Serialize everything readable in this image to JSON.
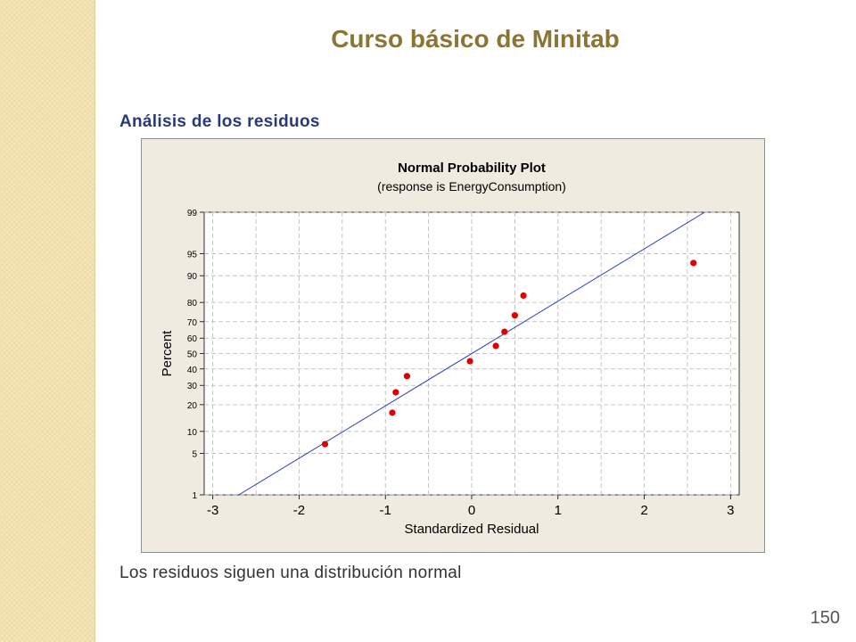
{
  "slide": {
    "title": "Curso básico de Minitab",
    "heading": "Análisis de los residuos",
    "caption": "Los residuos siguen una distribución normal",
    "page_number": "150"
  },
  "colors": {
    "title": "#8c7435",
    "heading": "#2a3a78",
    "points": "#e00000",
    "fit_line": "#2a3ccc",
    "frame_bg": "#efebe0"
  },
  "chart_data": {
    "type": "scatter",
    "title": "Normal Probability Plot",
    "subtitle": "(response is EnergyConsumption)",
    "xlabel": "Standardized Residual",
    "ylabel": "Percent",
    "xlim": [
      -3.1,
      3.1
    ],
    "xticks": [
      -3,
      -2,
      -1,
      0,
      1,
      2,
      3
    ],
    "xtick_labels": [
      "-3",
      "-2",
      "-1",
      "0",
      "1",
      "2",
      "3"
    ],
    "yscale": "normal-probability",
    "ylim": [
      1,
      99
    ],
    "yticks": [
      1,
      5,
      10,
      20,
      30,
      40,
      50,
      60,
      70,
      80,
      90,
      95,
      99
    ],
    "ytick_labels": [
      "1",
      "5",
      "10",
      "20",
      "30",
      "40",
      "50",
      "60",
      "70",
      "80",
      "90",
      "95",
      "99"
    ],
    "grid": true,
    "points": [
      {
        "x": -1.7,
        "y": 6.8
      },
      {
        "x": -0.92,
        "y": 16.5
      },
      {
        "x": -0.88,
        "y": 26.2
      },
      {
        "x": -0.75,
        "y": 35.5
      },
      {
        "x": -0.02,
        "y": 45.0
      },
      {
        "x": 0.28,
        "y": 55.0
      },
      {
        "x": 0.38,
        "y": 64.0
      },
      {
        "x": 0.5,
        "y": 73.5
      },
      {
        "x": 0.6,
        "y": 83.0
      },
      {
        "x": 2.57,
        "y": 93.2
      }
    ],
    "fit_line": {
      "x": [
        -2.7,
        2.7
      ],
      "y": [
        1,
        99
      ]
    }
  }
}
